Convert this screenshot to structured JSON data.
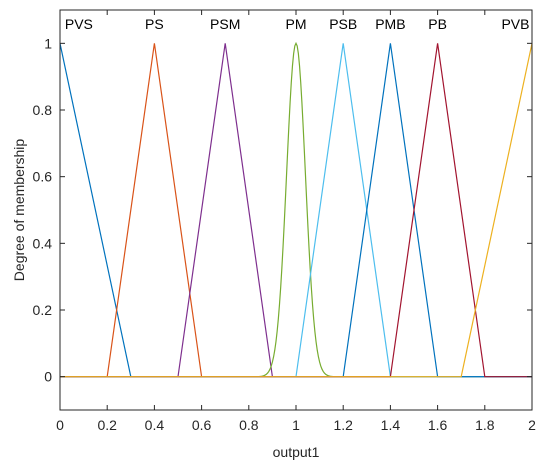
{
  "chart_data": {
    "type": "line",
    "xlabel": "output1",
    "ylabel": "Degree of membership",
    "xlim": [
      0,
      2
    ],
    "ylim": [
      -0.1,
      1.1
    ],
    "xticks": [
      0,
      0.2,
      0.4,
      0.6,
      0.8,
      1,
      1.2,
      1.4,
      1.6,
      1.8,
      2
    ],
    "xtick_labels": [
      "0",
      "0.2",
      "0.4",
      "0.6",
      "0.8",
      "1",
      "1.2",
      "1.4",
      "1.6",
      "1.8",
      "2"
    ],
    "yticks": [
      0,
      0.2,
      0.4,
      0.6,
      0.8,
      1
    ],
    "ytick_labels": [
      "0",
      "0.2",
      "0.4",
      "0.6",
      "0.8",
      "1"
    ],
    "grid": false,
    "series": [
      {
        "name": "PVS",
        "shape": "trimf",
        "params": [
          -0.3,
          0,
          0.3
        ],
        "color": "#0072BD",
        "label_x": 0.08
      },
      {
        "name": "PS",
        "shape": "trimf",
        "params": [
          0.2,
          0.4,
          0.6
        ],
        "color": "#D95319",
        "label_x": 0.4
      },
      {
        "name": "PSM",
        "shape": "trimf",
        "params": [
          0.5,
          0.7,
          0.9
        ],
        "color": "#7E2F8E",
        "label_x": 0.7
      },
      {
        "name": "PM",
        "shape": "gaussmf",
        "params": [
          0.04,
          1.0
        ],
        "color": "#77AC30",
        "label_x": 1.0
      },
      {
        "name": "PSB",
        "shape": "trimf",
        "params": [
          1.0,
          1.2,
          1.4
        ],
        "color": "#4DBEEE",
        "label_x": 1.2
      },
      {
        "name": "PMB",
        "shape": "trimf",
        "params": [
          1.2,
          1.4,
          1.6
        ],
        "color": "#0072BD",
        "label_x": 1.4
      },
      {
        "name": "PB",
        "shape": "trimf",
        "params": [
          1.4,
          1.6,
          1.8
        ],
        "color": "#A2142F",
        "label_x": 1.6
      },
      {
        "name": "PVB",
        "shape": "trimf",
        "params": [
          1.7,
          2.0,
          2.3
        ],
        "color": "#EDB120",
        "label_x": 1.93
      }
    ]
  }
}
